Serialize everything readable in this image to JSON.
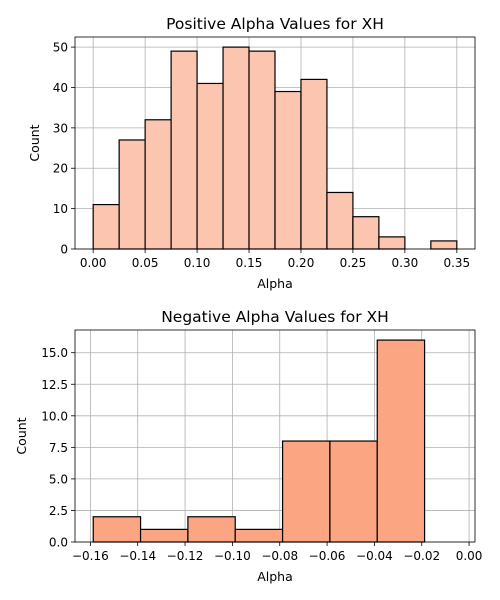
{
  "chart_data": [
    {
      "type": "bar",
      "title": "Positive Alpha Values for XH",
      "xlabel": "Alpha",
      "ylabel": "Count",
      "xlim": [
        -0.0175,
        0.3675
      ],
      "ylim": [
        0,
        52.5
      ],
      "xticks": [
        0.0,
        0.05,
        0.1,
        0.15,
        0.2,
        0.25,
        0.3,
        0.35
      ],
      "xtick_labels": [
        "0.00",
        "0.05",
        "0.10",
        "0.15",
        "0.20",
        "0.25",
        "0.30",
        "0.35"
      ],
      "yticks": [
        0,
        10,
        20,
        30,
        40,
        50
      ],
      "ytick_labels": [
        "0",
        "10",
        "20",
        "30",
        "40",
        "50"
      ],
      "grid": true,
      "bar_color": "#fcc5b0",
      "bins": [
        {
          "x0": 0.0,
          "x1": 0.025,
          "count": 11
        },
        {
          "x0": 0.025,
          "x1": 0.05,
          "count": 27
        },
        {
          "x0": 0.05,
          "x1": 0.075,
          "count": 32
        },
        {
          "x0": 0.075,
          "x1": 0.1,
          "count": 49
        },
        {
          "x0": 0.1,
          "x1": 0.125,
          "count": 41
        },
        {
          "x0": 0.125,
          "x1": 0.15,
          "count": 50
        },
        {
          "x0": 0.15,
          "x1": 0.175,
          "count": 49
        },
        {
          "x0": 0.175,
          "x1": 0.2,
          "count": 39
        },
        {
          "x0": 0.2,
          "x1": 0.225,
          "count": 42
        },
        {
          "x0": 0.225,
          "x1": 0.25,
          "count": 14
        },
        {
          "x0": 0.25,
          "x1": 0.275,
          "count": 8
        },
        {
          "x0": 0.275,
          "x1": 0.3,
          "count": 3
        },
        {
          "x0": 0.3,
          "x1": 0.325,
          "count": 0
        },
        {
          "x0": 0.325,
          "x1": 0.35,
          "count": 2
        }
      ]
    },
    {
      "type": "bar",
      "title": "Negative Alpha Values for XH",
      "xlabel": "Alpha",
      "ylabel": "Count",
      "xlim": [
        -0.1665,
        0.0025
      ],
      "ylim": [
        0,
        16.8
      ],
      "xticks": [
        -0.16,
        -0.14,
        -0.12,
        -0.1,
        -0.08,
        -0.06,
        -0.04,
        -0.02,
        0.0
      ],
      "xtick_labels": [
        "−0.16",
        "−0.14",
        "−0.12",
        "−0.10",
        "−0.08",
        "−0.06",
        "−0.04",
        "−0.02",
        "0.00"
      ],
      "yticks": [
        0.0,
        2.5,
        5.0,
        7.5,
        10.0,
        12.5,
        15.0
      ],
      "ytick_labels": [
        "0.0",
        "2.5",
        "5.0",
        "7.5",
        "10.0",
        "12.5",
        "15.0"
      ],
      "grid": true,
      "bar_color": "#fca583",
      "bins": [
        {
          "x0": -0.1588,
          "x1": -0.1388,
          "count": 2
        },
        {
          "x0": -0.1388,
          "x1": -0.1188,
          "count": 1
        },
        {
          "x0": -0.1188,
          "x1": -0.0988,
          "count": 2
        },
        {
          "x0": -0.0988,
          "x1": -0.0788,
          "count": 1
        },
        {
          "x0": -0.0788,
          "x1": -0.0588,
          "count": 8
        },
        {
          "x0": -0.0588,
          "x1": -0.0388,
          "count": 8
        },
        {
          "x0": -0.0388,
          "x1": -0.0188,
          "count": 16
        }
      ]
    }
  ]
}
